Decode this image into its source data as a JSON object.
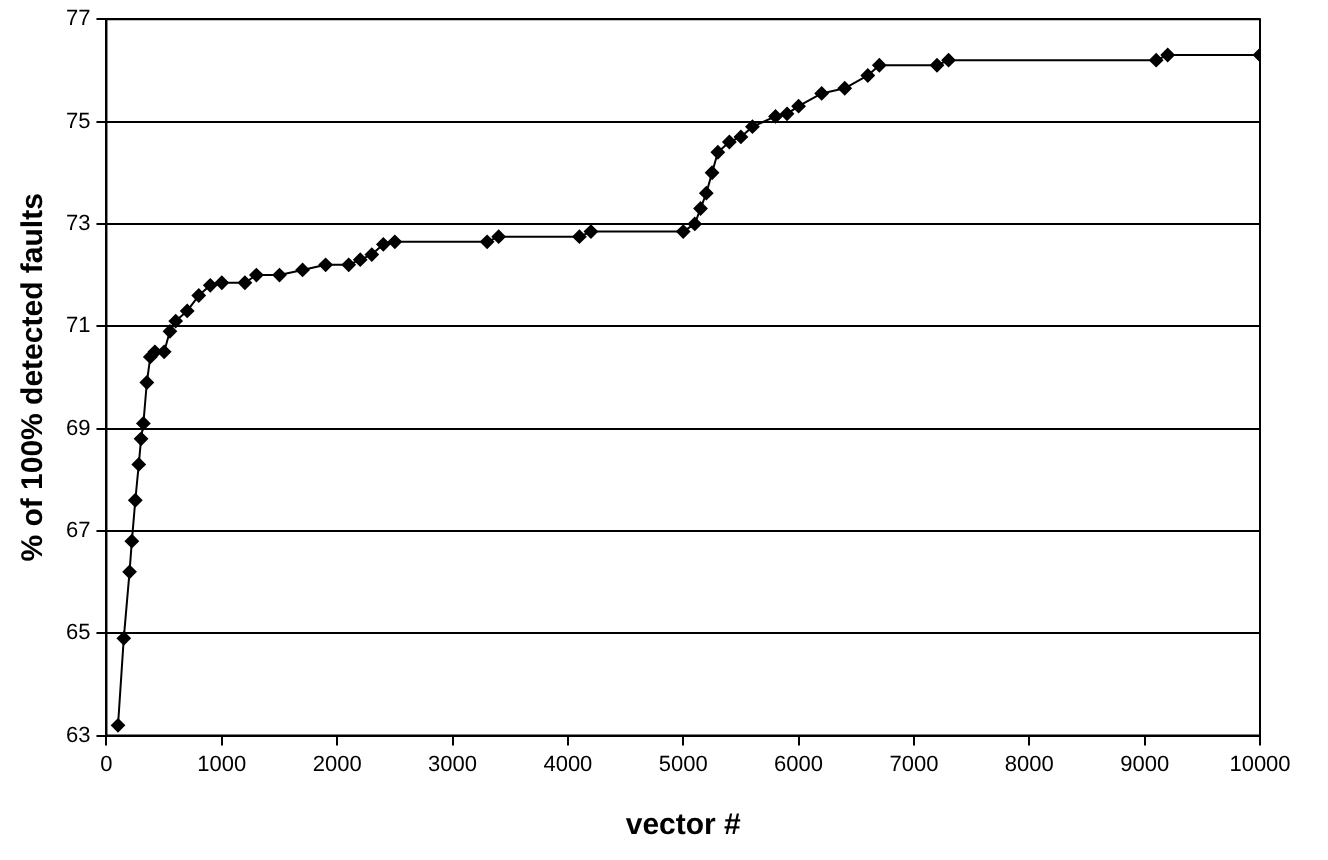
{
  "chart_data": {
    "type": "line",
    "xlabel": "vector #",
    "ylabel": "% of 100% detected faults",
    "x": [
      100,
      150,
      200,
      220,
      250,
      280,
      300,
      320,
      350,
      380,
      420,
      500,
      550,
      600,
      700,
      800,
      900,
      1000,
      1200,
      1300,
      1500,
      1700,
      1900,
      2100,
      2200,
      2300,
      2400,
      2500,
      3300,
      3400,
      4100,
      4200,
      5000,
      5100,
      5150,
      5200,
      5250,
      5300,
      5400,
      5500,
      5600,
      5800,
      5900,
      6000,
      6200,
      6400,
      6600,
      6700,
      7200,
      7300,
      9100,
      9200,
      10000
    ],
    "series": [
      {
        "color": "#000000",
        "values": [
          63.2,
          64.9,
          66.2,
          66.8,
          67.6,
          68.3,
          68.8,
          69.1,
          69.9,
          70.4,
          70.5,
          70.5,
          70.9,
          71.1,
          71.3,
          71.6,
          71.8,
          71.85,
          71.85,
          72.0,
          72.0,
          72.1,
          72.2,
          72.2,
          72.3,
          72.4,
          72.6,
          72.65,
          72.65,
          72.75,
          72.75,
          72.85,
          72.85,
          73.0,
          73.3,
          73.6,
          74.0,
          74.4,
          74.6,
          74.7,
          74.9,
          75.1,
          75.15,
          75.3,
          75.55,
          75.65,
          75.9,
          76.1,
          76.1,
          76.2,
          76.2,
          76.3,
          76.3
        ]
      }
    ],
    "xlim": [
      0,
      10000
    ],
    "xticks": [
      0,
      1000,
      2000,
      3000,
      4000,
      5000,
      6000,
      7000,
      8000,
      9000,
      10000
    ],
    "ylim": [
      63,
      77
    ],
    "yticks": [
      63,
      65,
      67,
      69,
      71,
      73,
      75,
      77
    ],
    "grid": "y",
    "legend": false,
    "marker": "diamond",
    "line_style": "solid"
  }
}
